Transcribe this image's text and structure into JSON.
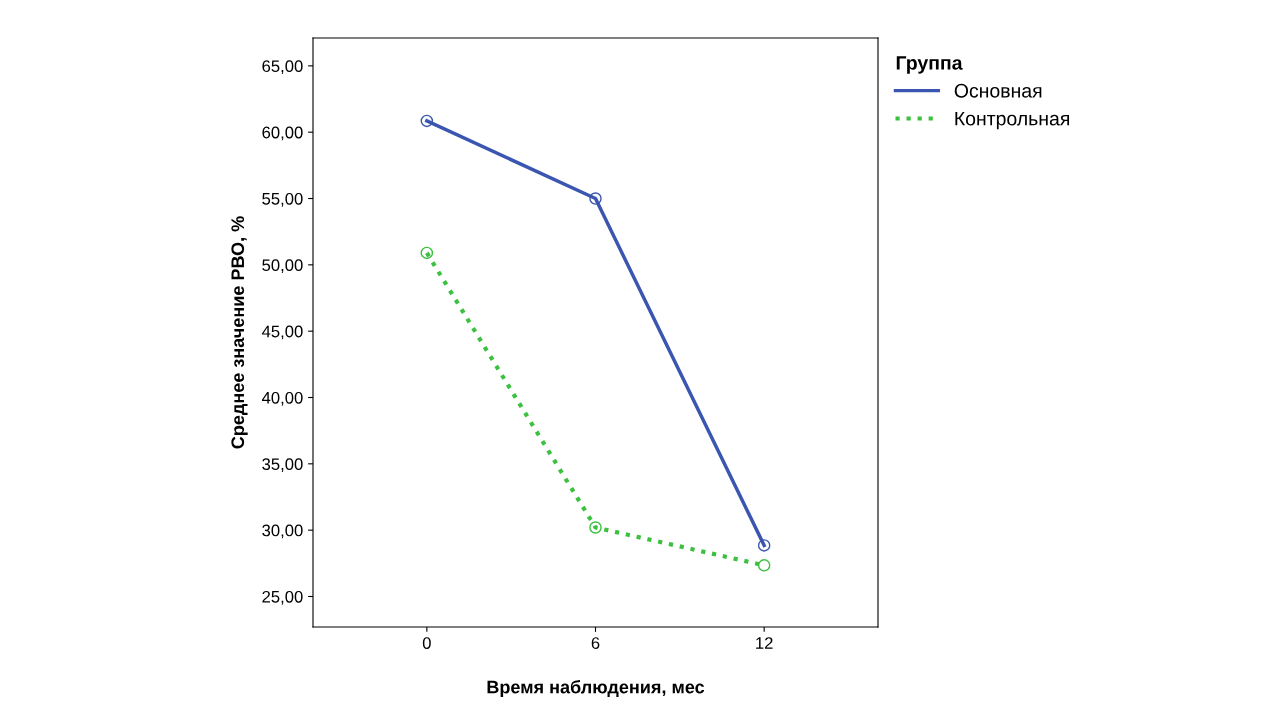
{
  "chart_data": {
    "type": "line",
    "xlabel": "Время наблюдения, мес",
    "ylabel": "Среднее значение РВО, %",
    "legend_title": "Группа",
    "categories": [
      "0",
      "6",
      "12"
    ],
    "series": [
      {
        "name": "Основная",
        "color": "#3a56b0",
        "values": [
          60.85,
          55.0,
          28.85
        ],
        "line_style": "solid"
      },
      {
        "name": "Контрольная",
        "color": "#3cc040",
        "values": [
          50.9,
          30.2,
          27.35
        ],
        "line_style": "dotted"
      }
    ],
    "ylim": [
      22.7,
      67.1
    ],
    "yticks": [
      {
        "value": 25,
        "label": "25,00"
      },
      {
        "value": 30,
        "label": "30,00"
      },
      {
        "value": 35,
        "label": "35,00"
      },
      {
        "value": 40,
        "label": "40,00"
      },
      {
        "value": 45,
        "label": "45,00"
      },
      {
        "value": 50,
        "label": "50,00"
      },
      {
        "value": 55,
        "label": "55,00"
      },
      {
        "value": 60,
        "label": "60,00"
      },
      {
        "value": 65,
        "label": "65,00"
      }
    ],
    "marker": "circle",
    "grid": false,
    "legend": "top right"
  }
}
